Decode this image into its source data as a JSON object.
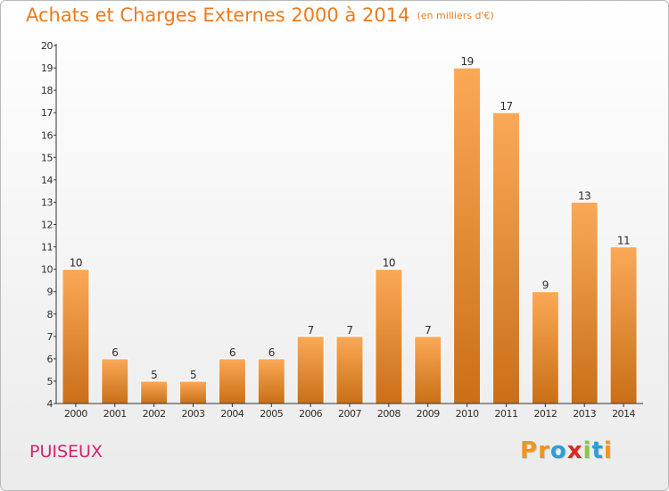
{
  "title": "Achats et Charges Externes 2000 à 2014",
  "unit_label": "(en milliers d'€)",
  "place": "PUISEUX",
  "logo": {
    "p": "P",
    "r": "r",
    "o": "o",
    "x": "x",
    "i1": "i",
    "t": "t",
    "i2": "i"
  },
  "colors": {
    "bar_light": "#fba957",
    "bar_dark": "#c96f17",
    "title": "#ec7a1e",
    "place": "#d4236f"
  },
  "chart_data": {
    "type": "bar",
    "title": "Achats et Charges Externes 2000 à 2014",
    "subtitle": "(en milliers d'€)",
    "xlabel": "",
    "ylabel": "",
    "categories": [
      "2000",
      "2001",
      "2002",
      "2003",
      "2004",
      "2005",
      "2006",
      "2007",
      "2008",
      "2009",
      "2010",
      "2011",
      "2012",
      "2013",
      "2014"
    ],
    "values": [
      10,
      6,
      5,
      5,
      6,
      6,
      7,
      7,
      10,
      7,
      19,
      17,
      9,
      13,
      11
    ],
    "ylim": [
      4,
      20
    ],
    "yticks": [
      4,
      5,
      6,
      7,
      8,
      9,
      10,
      11,
      12,
      13,
      14,
      15,
      16,
      17,
      18,
      19,
      20
    ],
    "grid": false,
    "data_labels": true
  }
}
